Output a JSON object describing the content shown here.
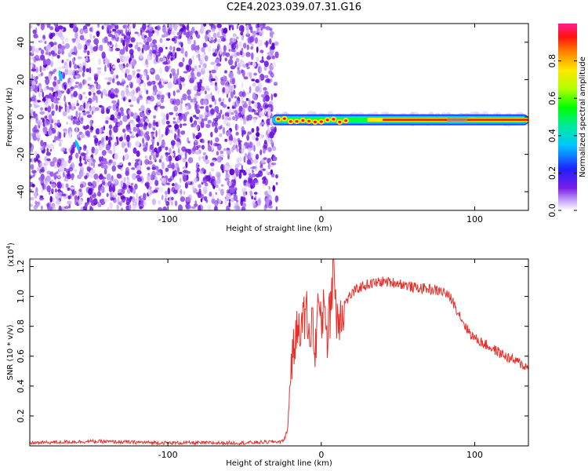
{
  "title": "C2E4.2023.039.07.31.G16",
  "chart_data": [
    {
      "type": "heatmap",
      "xlabel": "Height of straight line (km)",
      "ylabel": "Frequency (Hz)",
      "xlim": [
        -190,
        135
      ],
      "ylim": [
        -50,
        50
      ],
      "xticks": [
        -100,
        0,
        100
      ],
      "yticks": [
        -40,
        -20,
        0,
        20,
        40
      ],
      "colorbar": {
        "label": "Normalized spectral amplitude",
        "range": [
          0,
          1
        ],
        "ticks": [
          "0.0",
          "0.2",
          "0.4",
          "0.6",
          "0.8"
        ]
      }
    },
    {
      "type": "line",
      "xlabel": "Height of straight line (km)",
      "ylabel": "SNR (10 * v/v)",
      "y_multiplier": "(x10",
      "y_multiplier_exp": "4",
      "y_multiplier_close": ")",
      "xlim": [
        -190,
        135
      ],
      "ylim": [
        0,
        1.25
      ],
      "xticks": [
        -100,
        0,
        100
      ],
      "yticks": [
        0.2,
        0.4,
        0.6,
        0.8,
        1.0,
        1.2
      ],
      "series": [
        {
          "color": "#e8302a",
          "x": [
            -190,
            -150,
            -100,
            -50,
            -25,
            -22,
            -20,
            -18,
            -16,
            -14,
            -12,
            -10,
            -8,
            -6,
            -4,
            -2,
            0,
            2,
            4,
            6,
            8,
            10,
            12,
            15,
            20,
            25,
            30,
            40,
            50,
            60,
            70,
            80,
            85,
            90,
            95,
            100,
            110,
            120,
            130,
            135
          ],
          "y": [
            0.02,
            0.03,
            0.02,
            0.02,
            0.03,
            0.1,
            0.5,
            0.65,
            0.75,
            0.85,
            0.8,
            0.95,
            0.7,
            0.88,
            0.6,
            1.0,
            0.75,
            1.05,
            0.7,
            0.95,
            1.25,
            0.85,
            0.9,
            0.95,
            1.02,
            1.06,
            1.08,
            1.1,
            1.09,
            1.06,
            1.05,
            1.03,
            0.98,
            0.88,
            0.78,
            0.72,
            0.66,
            0.6,
            0.55,
            0.52
          ]
        }
      ]
    }
  ]
}
